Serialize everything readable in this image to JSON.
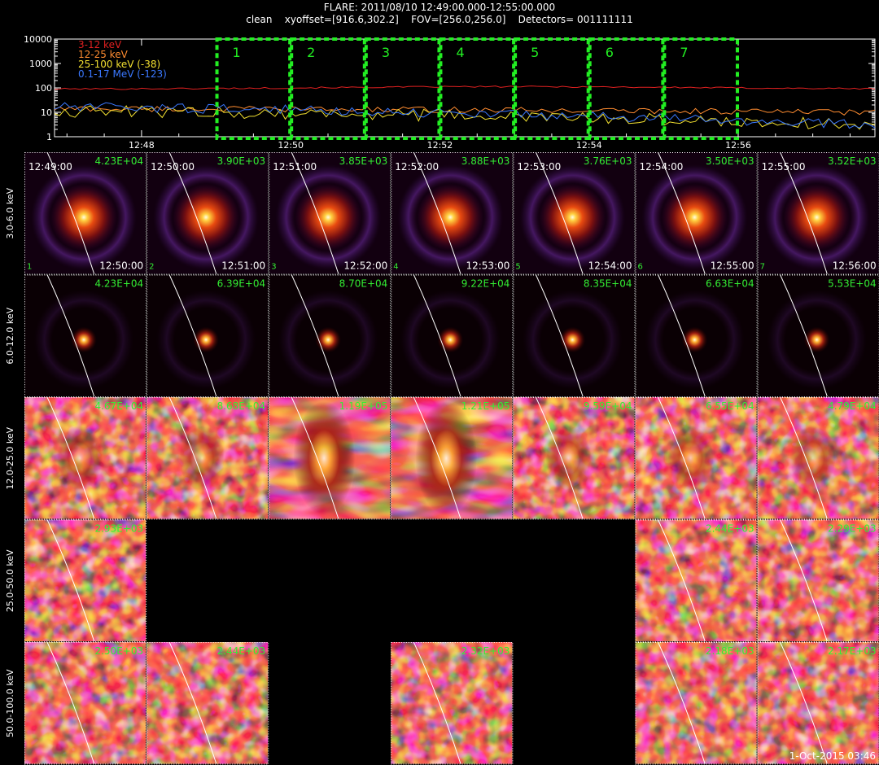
{
  "header": {
    "title": "FLARE: 2011/08/10 12:49:00.000-12:55:00.000",
    "subtitle": "clean    xyoffset=[916.6,302.2]    FOV=[256.0,256.0]    Detectors= 001111111"
  },
  "footer": {
    "timestamp": "1-Oct-2015 03:46"
  },
  "colors": {
    "band_3_12": "#e02020",
    "band_12_25": "#ff8c30",
    "band_25_100": "#f2e030",
    "band_01_17": "#3a78ff",
    "window_box": "#22ee22",
    "label_green": "#33ee33"
  },
  "chart_data": [
    {
      "type": "line",
      "yscale": "log",
      "ylim": [
        1,
        10000
      ],
      "y_ticks": [
        "10000",
        "1000",
        "100",
        "10",
        "1"
      ],
      "x_ticks": [
        "12:48",
        "12:50",
        "12:52",
        "12:54",
        "12:56"
      ],
      "xlim": [
        "12:46:50",
        "12:57:50"
      ],
      "legend_position": "top-left",
      "series": [
        {
          "name": "3-12 keV",
          "color": "#e02020",
          "level": 90,
          "noise": 0.03,
          "peak_at": "12:53:00",
          "peak_boost": 1.25
        },
        {
          "name": "12-25 keV",
          "color": "#ff8c30",
          "level": 14,
          "noise": 0.12,
          "end_level": 10
        },
        {
          "name": "25-100 keV (-38)",
          "color": "#f2e030",
          "level": 11,
          "noise": 0.25,
          "end_level": 3
        },
        {
          "name": "0.1-17 MeV (-123)",
          "color": "#3a78ff",
          "level": 16,
          "noise": 0.2,
          "end_level": 3
        }
      ],
      "windows": [
        {
          "label": "1",
          "start": "12:49:00",
          "end": "12:50:00"
        },
        {
          "label": "2",
          "start": "12:50:00",
          "end": "12:51:00"
        },
        {
          "label": "3",
          "start": "12:51:00",
          "end": "12:52:00"
        },
        {
          "label": "4",
          "start": "12:52:00",
          "end": "12:53:00"
        },
        {
          "label": "5",
          "start": "12:53:00",
          "end": "12:54:00"
        },
        {
          "label": "6",
          "start": "12:54:00",
          "end": "12:55:00"
        },
        {
          "label": "7",
          "start": "12:55:00",
          "end": "12:56:00"
        }
      ]
    },
    {
      "type": "heatmap",
      "columns": [
        {
          "start": "12:49:00",
          "end": "12:50:00",
          "index": "1"
        },
        {
          "start": "12:50:00",
          "end": "12:51:00",
          "index": "2"
        },
        {
          "start": "12:51:00",
          "end": "12:52:00",
          "index": "3"
        },
        {
          "start": "12:52:00",
          "end": "12:53:00",
          "index": "4"
        },
        {
          "start": "12:53:00",
          "end": "12:54:00",
          "index": "5"
        },
        {
          "start": "12:54:00",
          "end": "12:55:00",
          "index": "6"
        },
        {
          "start": "12:55:00",
          "end": "12:56:00",
          "index": "7"
        }
      ],
      "rows": [
        {
          "label": "3.0-6.0 keV",
          "style": "source_ring",
          "peaks": [
            "4.23E+04",
            "3.90E+03",
            "3.85E+03",
            "3.88E+03",
            "3.76E+03",
            "3.50E+03",
            "3.52E+03"
          ]
        },
        {
          "label": "6.0-12.0 keV",
          "style": "source_compact",
          "peaks": [
            "4.23E+04",
            "6.39E+04",
            "8.70E+04",
            "9.22E+04",
            "8.35E+04",
            "6.63E+04",
            "5.53E+04"
          ]
        },
        {
          "label": "12.0-25.0 keV",
          "style": "noise",
          "peaks": [
            "4.67E+04",
            "8.68E+04",
            "1.19E+05",
            "1.21E+05",
            "9.59E+04",
            "6.55E+04",
            "4.79E+04"
          ]
        },
        {
          "label": "25.0-50.0 keV",
          "style": "noise",
          "peaks": [
            "2.93E+03",
            null,
            null,
            null,
            null,
            "2.44E+03",
            "2.29E+03"
          ]
        },
        {
          "label": "50.0-100.0 keV",
          "style": "noise",
          "peaks": [
            "2.50E+03",
            "2.44E+03",
            null,
            "2.32E+03",
            null,
            "2.18E+03",
            "2.17E+03"
          ]
        }
      ]
    }
  ]
}
